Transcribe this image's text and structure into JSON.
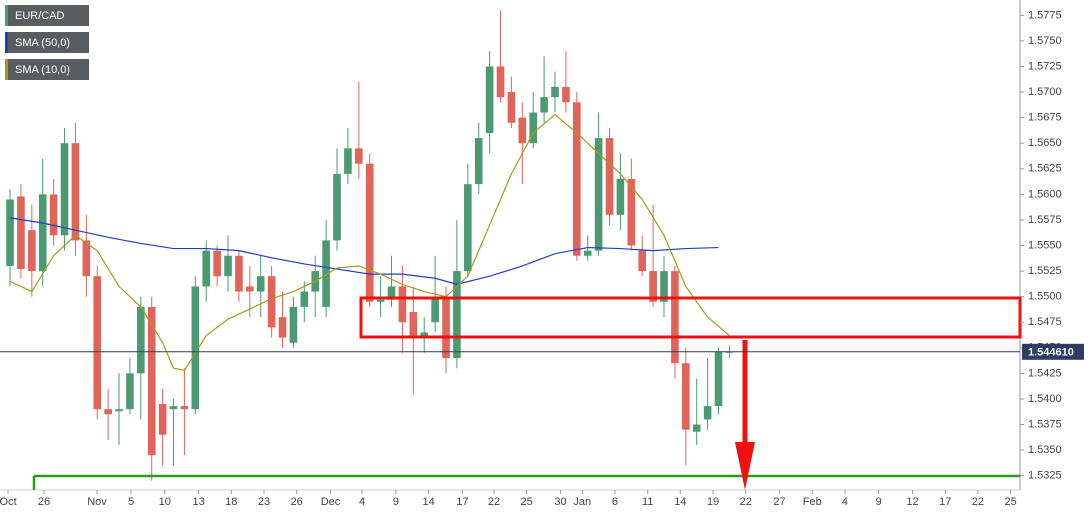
{
  "chart_data": {
    "type": "candlestick",
    "series": [
      {
        "name": "EUR/CAD",
        "up_color": "#4c9a73",
        "down_color": "#e0645a",
        "x": [
          0,
          1,
          2,
          3,
          4,
          5,
          6,
          7,
          8,
          9,
          10,
          11,
          12,
          13,
          14,
          15,
          16,
          17,
          18,
          19,
          20,
          21,
          22,
          23,
          24,
          25,
          26,
          27,
          28,
          29,
          30,
          31,
          32,
          33,
          34,
          35,
          36,
          37,
          38,
          39,
          40,
          41,
          42,
          43,
          44,
          45,
          46,
          47,
          48,
          49,
          50,
          51,
          52,
          53,
          54,
          55,
          56,
          57,
          58,
          59,
          60,
          61,
          62,
          63,
          64,
          65,
          66
        ],
        "open": [
          1.553,
          1.5598,
          1.5565,
          1.5525,
          1.56,
          1.556,
          1.565,
          1.5555,
          1.552,
          1.539,
          1.5388,
          1.539,
          1.5425,
          1.549,
          1.5395,
          1.539,
          1.5393,
          1.539,
          1.551,
          1.5545,
          1.552,
          1.554,
          1.551,
          1.5505,
          1.552,
          1.548,
          1.5455,
          1.549,
          1.5505,
          1.549,
          1.5555,
          1.562,
          1.5645,
          1.563,
          1.5495,
          1.5497,
          1.551,
          1.5485,
          1.546,
          1.5475,
          1.55,
          1.544,
          1.5525,
          1.561,
          1.566,
          1.5725,
          1.57,
          1.5675,
          1.565,
          1.568,
          1.5695,
          1.5705,
          1.569,
          1.554,
          1.5545,
          1.5655,
          1.558,
          1.5615,
          1.5545,
          1.5525,
          1.5495,
          1.5525,
          1.5435,
          1.5368,
          1.538,
          1.5393,
          1.5446
        ],
        "high": [
          1.5605,
          1.561,
          1.559,
          1.5635,
          1.5615,
          1.5665,
          1.567,
          1.558,
          1.553,
          1.541,
          1.5425,
          1.544,
          1.55,
          1.55,
          1.541,
          1.54,
          1.543,
          1.552,
          1.5555,
          1.555,
          1.556,
          1.5545,
          1.553,
          1.554,
          1.553,
          1.5505,
          1.55,
          1.5515,
          1.554,
          1.5575,
          1.5645,
          1.5665,
          1.571,
          1.564,
          1.552,
          1.554,
          1.553,
          1.551,
          1.548,
          1.554,
          1.551,
          1.5575,
          1.563,
          1.567,
          1.574,
          1.578,
          1.5715,
          1.569,
          1.57,
          1.5735,
          1.572,
          1.574,
          1.57,
          1.556,
          1.568,
          1.5665,
          1.564,
          1.5635,
          1.556,
          1.559,
          1.554,
          1.553,
          1.545,
          1.542,
          1.544,
          1.545,
          1.5452
        ],
        "low": [
          1.551,
          1.5518,
          1.55,
          1.551,
          1.555,
          1.5545,
          1.554,
          1.55,
          1.538,
          1.536,
          1.5355,
          1.5385,
          1.538,
          1.532,
          1.5335,
          1.5335,
          1.5345,
          1.5385,
          1.5495,
          1.551,
          1.5505,
          1.5495,
          1.548,
          1.548,
          1.546,
          1.545,
          1.545,
          1.5475,
          1.548,
          1.548,
          1.5545,
          1.561,
          1.5615,
          1.549,
          1.548,
          1.549,
          1.5445,
          1.5405,
          1.5445,
          1.5465,
          1.5425,
          1.543,
          1.552,
          1.56,
          1.564,
          1.569,
          1.5665,
          1.561,
          1.5645,
          1.567,
          1.568,
          1.568,
          1.5535,
          1.5535,
          1.554,
          1.557,
          1.5565,
          1.5545,
          1.552,
          1.549,
          1.548,
          1.542,
          1.5335,
          1.5355,
          1.537,
          1.5385,
          1.544
        ],
        "close": [
          1.5595,
          1.5527,
          1.5525,
          1.56,
          1.556,
          1.565,
          1.5555,
          1.552,
          1.539,
          1.5385,
          1.539,
          1.5425,
          1.549,
          1.5345,
          1.5365,
          1.5393,
          1.539,
          1.551,
          1.5545,
          1.552,
          1.554,
          1.5505,
          1.5505,
          1.552,
          1.547,
          1.546,
          1.549,
          1.5505,
          1.5525,
          1.5555,
          1.562,
          1.5645,
          1.563,
          1.5495,
          1.5497,
          1.551,
          1.5475,
          1.546,
          1.5465,
          1.55,
          1.544,
          1.5525,
          1.561,
          1.5655,
          1.5725,
          1.5695,
          1.567,
          1.565,
          1.568,
          1.5695,
          1.5705,
          1.569,
          1.554,
          1.5545,
          1.5655,
          1.558,
          1.5615,
          1.555,
          1.5525,
          1.5495,
          1.5525,
          1.5435,
          1.537,
          1.5375,
          1.5393,
          1.5446,
          1.54461
        ]
      },
      {
        "name": "SMA (50,0)",
        "type": "line",
        "color": "#1f3fbf",
        "x": [
          0,
          3,
          6,
          9,
          12,
          15,
          18,
          21,
          24,
          27,
          30,
          33,
          36,
          39,
          41,
          44,
          47,
          50,
          53,
          56,
          59,
          62,
          65
        ],
        "values": [
          1.5577,
          1.5572,
          1.5565,
          1.5558,
          1.5552,
          1.5547,
          1.5547,
          1.5545,
          1.5538,
          1.5532,
          1.5527,
          1.5522,
          1.5522,
          1.5518,
          1.5512,
          1.552,
          1.553,
          1.5542,
          1.5548,
          1.5547,
          1.5545,
          1.5547,
          1.5548
        ]
      },
      {
        "name": "SMA (10,0)",
        "type": "line",
        "color": "#a59a1c",
        "x": [
          0,
          2,
          4,
          6,
          8,
          10,
          12,
          14,
          15,
          16,
          18,
          20,
          22,
          24,
          26,
          28,
          30,
          32,
          34,
          36,
          38,
          40,
          42,
          44,
          46,
          48,
          50,
          52,
          54,
          56,
          58,
          60,
          62,
          64,
          66
        ],
        "values": [
          1.5515,
          1.5505,
          1.554,
          1.556,
          1.5545,
          1.551,
          1.549,
          1.5455,
          1.543,
          1.5428,
          1.5462,
          1.5478,
          1.5488,
          1.5498,
          1.5505,
          1.5515,
          1.5528,
          1.553,
          1.5522,
          1.5512,
          1.5505,
          1.55,
          1.552,
          1.557,
          1.562,
          1.566,
          1.5678,
          1.566,
          1.564,
          1.562,
          1.5595,
          1.556,
          1.551,
          1.548,
          1.5462
        ]
      }
    ],
    "last_price": {
      "value": 1.54461,
      "label": "1.544610"
    },
    "ylim": [
      1.5311,
      1.579
    ],
    "yticks": [
      1.5325,
      {
        "value": 1.535,
        "label": "1.5350"
      },
      1.5375,
      {
        "value": 1.54,
        "label": "1.5400"
      },
      1.5425,
      {
        "value": 1.545,
        "label": "1.5450"
      },
      1.5475,
      {
        "value": 1.55,
        "label": "1.5500"
      },
      1.5525,
      {
        "value": 1.555,
        "label": "1.5550"
      },
      1.5575,
      {
        "value": 1.56,
        "label": "1.5600"
      },
      1.5625,
      {
        "value": 1.565,
        "label": "1.5650"
      },
      1.5675,
      {
        "value": 1.57,
        "label": "1.5700"
      },
      1.5725,
      {
        "value": 1.575,
        "label": "1.5750"
      },
      1.5775
    ],
    "xlim": [
      -0.92,
      92.66
    ],
    "xticks": [
      {
        "value": -0.18,
        "label": "Oct"
      },
      {
        "value": 3.12,
        "label": "26"
      },
      {
        "value": 7.98,
        "label": "Nov"
      },
      {
        "value": 11.1,
        "label": "5"
      },
      {
        "value": 14.2,
        "label": "10"
      },
      {
        "value": 17.3,
        "label": "13"
      },
      {
        "value": 20.3,
        "label": "18"
      },
      {
        "value": 23.3,
        "label": "23"
      },
      {
        "value": 26.3,
        "label": "26"
      },
      {
        "value": 29.4,
        "label": "Dec"
      },
      {
        "value": 32.3,
        "label": "4"
      },
      {
        "value": 35.4,
        "label": "9"
      },
      {
        "value": 38.4,
        "label": "14"
      },
      {
        "value": 41.5,
        "label": "17"
      },
      {
        "value": 44.4,
        "label": "22"
      },
      {
        "value": 47.4,
        "label": "25"
      },
      {
        "value": 50.5,
        "label": "30"
      },
      {
        "value": 52.5,
        "label": "Jan"
      },
      {
        "value": 55.5,
        "label": "6"
      },
      {
        "value": 58.5,
        "label": "11"
      },
      {
        "value": 61.5,
        "label": "14"
      },
      {
        "value": 64.5,
        "label": "19"
      },
      {
        "value": 67.5,
        "label": "22"
      },
      {
        "value": 70.6,
        "label": "27"
      },
      {
        "value": 73.6,
        "label": "Feb"
      },
      {
        "value": 76.6,
        "label": "4"
      },
      {
        "value": 79.7,
        "label": "9"
      },
      {
        "value": 82.8,
        "label": "12"
      },
      {
        "value": 85.8,
        "label": "17"
      },
      {
        "value": 88.8,
        "label": "22"
      },
      {
        "value": 91.8,
        "label": "25"
      }
    ],
    "legend": "upper left"
  }
}
